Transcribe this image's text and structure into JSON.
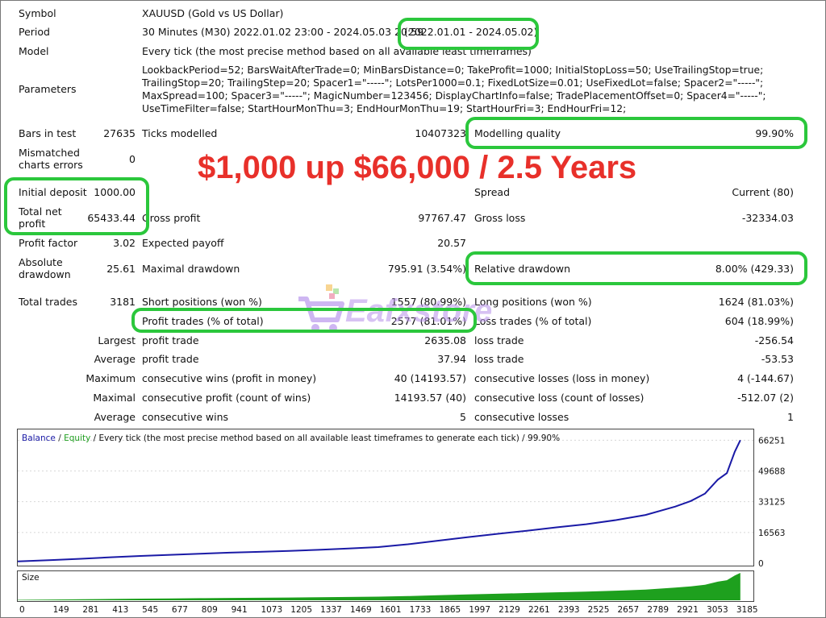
{
  "report": {
    "symbol": {
      "label": "Symbol",
      "value": "XAUUSD (Gold vs US Dollar)"
    },
    "period": {
      "label": "Period",
      "value": "30 Minutes (M30) 2022.01.02 23:00 - 2024.05.03 20:59",
      "range": "(2022.01.01 - 2024.05.02)"
    },
    "model": {
      "label": "Model",
      "value": "Every tick (the most precise method based on all available least timeframes)"
    },
    "parameters": {
      "label": "Parameters",
      "lines": [
        "LookbackPeriod=52; BarsWaitAfterTrade=0; MinBarsDistance=0; TakeProfit=1000; InitialStopLoss=50; UseTrailingStop=true;",
        "TrailingStop=20; TrailingStep=20; Spacer1=\"-----\"; LotsPer1000=0.1; FixedLotSize=0.01; UseFixedLot=false; Spacer2=\"-----\";",
        "MaxSpread=100; Spacer3=\"-----\"; MagicNumber=123456; DisplayChartInfo=false; TradePlacementOffset=0; Spacer4=\"-----\";",
        "UseTimeFilter=false; StartHourMonThu=3; EndHourMonThu=19; StartHourFri=3; EndHourFri=12;"
      ]
    },
    "bars_in_test": {
      "label": "Bars in test",
      "value": "27635"
    },
    "ticks_modelled": {
      "label": "Ticks modelled",
      "value": "10407323"
    },
    "modelling_quality": {
      "label": "Modelling quality",
      "value": "99.90%"
    },
    "mismatched": {
      "label_1": "Mismatched",
      "label_2": "charts errors",
      "value": "0"
    },
    "initial_deposit": {
      "label": "Initial deposit",
      "value": "1000.00"
    },
    "spread": {
      "label": "Spread",
      "value": "Current (80)"
    },
    "total_net_profit": {
      "label_1": "Total net",
      "label_2": "profit",
      "value": "65433.44"
    },
    "gross_profit": {
      "label": "Gross profit",
      "value": "97767.47"
    },
    "gross_loss": {
      "label": "Gross loss",
      "value": "-32334.03"
    },
    "profit_factor": {
      "label": "Profit factor",
      "value": "3.02"
    },
    "expected_payoff": {
      "label": "Expected payoff",
      "value": "20.57"
    },
    "absolute_drawdown": {
      "label_1": "Absolute",
      "label_2": "drawdown",
      "value": "25.61"
    },
    "maximal_drawdown": {
      "label": "Maximal drawdown",
      "value": "795.91 (3.54%)"
    },
    "relative_drawdown": {
      "label": "Relative drawdown",
      "value": "8.00% (429.33)"
    },
    "total_trades": {
      "label": "Total trades",
      "value": "3181"
    },
    "short_positions": {
      "label": "Short positions (won %)",
      "value": "1557 (80.99%)"
    },
    "long_positions": {
      "label": "Long positions (won %)",
      "value": "1624 (81.03%)"
    },
    "profit_trades": {
      "label": "Profit trades (% of total)",
      "value": "2577 (81.01%)"
    },
    "loss_trades": {
      "label": "Loss trades (% of total)",
      "value": "604 (18.99%)"
    },
    "largest": {
      "label": "Largest",
      "profit_label": "profit trade",
      "profit_value": "2635.08",
      "loss_label": "loss trade",
      "loss_value": "-256.54"
    },
    "average": {
      "label": "Average",
      "profit_label": "profit trade",
      "profit_value": "37.94",
      "loss_label": "loss trade",
      "loss_value": "-53.53"
    },
    "maximum": {
      "label": "Maximum",
      "profit_label": "consecutive wins (profit in money)",
      "profit_value": "40 (14193.57)",
      "loss_label": "consecutive losses (loss in money)",
      "loss_value": "4 (-144.67)"
    },
    "maximal": {
      "label": "Maximal",
      "profit_label": "consecutive profit (count of wins)",
      "profit_value": "14193.57 (40)",
      "loss_label": "consecutive loss (count of losses)",
      "loss_value": "-512.07 (2)"
    },
    "average2": {
      "label": "Average",
      "profit_label": "consecutive wins",
      "profit_value": "5",
      "loss_label": "consecutive losses",
      "loss_value": "1"
    }
  },
  "headline": "$1,000 up $66,000 / 2.5 Years",
  "watermark": "Eafxstore",
  "colors": {
    "highlight": "#2bc73c",
    "headline": "#e8302a",
    "balance": "#1a1aa6",
    "equity": "#1e9e1e",
    "volume": "#1ea01e"
  },
  "chart_data": {
    "type": "line",
    "legend": {
      "balance": "Balance",
      "sep": " / ",
      "equity": "Equity",
      "caption": " / Every tick (the most precise method based on all available least timeframes to generate each tick) / 99.90%"
    },
    "sub_label": "Size",
    "x_ticks": [
      0,
      149,
      281,
      413,
      545,
      677,
      809,
      941,
      1073,
      1205,
      1337,
      1469,
      1601,
      1733,
      1865,
      1997,
      2129,
      2261,
      2393,
      2525,
      2657,
      2789,
      2921,
      3053,
      3185
    ],
    "y_ticks": [
      0,
      16563,
      33125,
      49688,
      66251
    ],
    "ylim": [
      0,
      69000
    ],
    "xlim": [
      0,
      3250
    ],
    "series": [
      {
        "name": "Balance",
        "x": [
          0,
          149,
          281,
          413,
          545,
          677,
          809,
          941,
          1073,
          1205,
          1337,
          1469,
          1601,
          1733,
          1865,
          1997,
          2129,
          2261,
          2393,
          2525,
          2657,
          2789,
          2921,
          2990,
          3053,
          3110,
          3150,
          3185,
          3210
        ],
        "y": [
          1000,
          1700,
          2400,
          3200,
          3900,
          4500,
          5100,
          5700,
          6100,
          6600,
          7200,
          7900,
          8700,
          10200,
          12100,
          14000,
          15800,
          17500,
          19300,
          21000,
          23200,
          26000,
          30500,
          33500,
          37500,
          45000,
          48500,
          60000,
          66251
        ]
      }
    ]
  }
}
